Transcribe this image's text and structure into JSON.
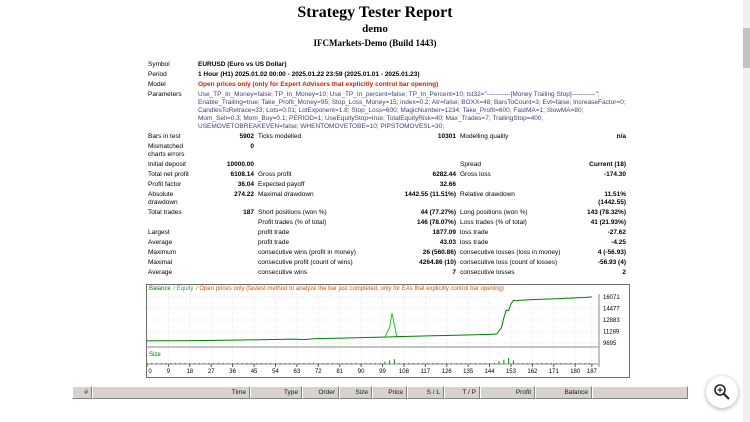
{
  "page": {
    "title": "Strategy Tester Report",
    "subtitle": "demo",
    "server": "IFCMarkets-Demo (Build 1443)"
  },
  "report": {
    "rows": [
      [
        {
          "t": "Symbol",
          "c": "l"
        },
        {
          "t": "EURUSD (Euro vs US Dollar)",
          "c": "vl",
          "span": 5
        }
      ],
      [
        {
          "t": "Period",
          "c": "l"
        },
        {
          "t": "1 Hour (H1) 2025.01.02 00:00 - 2025.01.22 23:59 (2025.01.01 - 2025.01.23)",
          "c": "vl",
          "span": 5
        }
      ],
      [
        {
          "t": "Model",
          "c": "l"
        },
        {
          "t": "Open prices only (only for Expert Advisors that explicitly control bar opening)",
          "c": "m",
          "span": 5
        }
      ],
      [
        {
          "t": "Parameters",
          "c": "l"
        },
        {
          "t": "Use_TP_In_Money=false; TP_In_Money=10; Use_TP_In_percent=false; TP_In_Percent=10; tst32=\"-----------[Money Trailing Stop]-----------\"; Enable_Trailing=true; Take_Profit_Money=95; Stop_Loss_Money=15; index=0.2; Atr=false; BOXX=48; BarsToCount=3; Evt=false; IncreaseFactor=0; CandlesToRetrace=33; Lots=0.01; LotExponent=1.8; Stop_Loss=600; MagicNumber=1234; Take_Profit=600; FastMA=1; SlowMA=80; Mom_Sell=0.3; Mom_Buy=0.1; PERIOD=1; UseEquityStop=true; TotalEquityRisk=40; Max_Trades=7; TrailingStop=400; USEMOVETOBREAKEVEN=false; WHENTOMOVETOBE=10; PIPSTOMOVESL=30;",
          "c": "p",
          "span": 5
        }
      ],
      [
        {
          "t": "Bars in test",
          "c": "l"
        },
        {
          "t": "5902",
          "c": "v"
        },
        {
          "t": "Ticks modelled",
          "c": "l"
        },
        {
          "t": "10301",
          "c": "v"
        },
        {
          "t": "Modelling quality",
          "c": "l"
        },
        {
          "t": "n/a",
          "c": "v"
        }
      ],
      [
        {
          "t": "Mismatched charts errors",
          "c": "l"
        },
        {
          "t": "0",
          "c": "v"
        },
        {
          "t": "",
          "c": "l",
          "span": 4
        }
      ],
      [
        {
          "t": "Initial deposit",
          "c": "l"
        },
        {
          "t": "10000.00",
          "c": "v"
        },
        {
          "t": "",
          "c": "l",
          "span": 2
        },
        {
          "t": "Spread",
          "c": "l"
        },
        {
          "t": "Current (18)",
          "c": "v"
        }
      ],
      [
        {
          "t": "Total net profit",
          "c": "l"
        },
        {
          "t": "6108.14",
          "c": "v"
        },
        {
          "t": "Gross profit",
          "c": "l"
        },
        {
          "t": "6282.44",
          "c": "v"
        },
        {
          "t": "Gross loss",
          "c": "l"
        },
        {
          "t": "-174.30",
          "c": "v"
        }
      ],
      [
        {
          "t": "Profit factor",
          "c": "l"
        },
        {
          "t": "36.04",
          "c": "v"
        },
        {
          "t": "Expected payoff",
          "c": "l"
        },
        {
          "t": "32.66",
          "c": "v"
        },
        {
          "t": "",
          "c": "l",
          "span": 2
        }
      ],
      [
        {
          "t": "Absolute drawdown",
          "c": "l"
        },
        {
          "t": "274.22",
          "c": "v"
        },
        {
          "t": "Maximal drawdown",
          "c": "l"
        },
        {
          "t": "1442.55 (11.51%)",
          "c": "v"
        },
        {
          "t": "Relative drawdown",
          "c": "l"
        },
        {
          "t": "11.51% (1442.55)",
          "c": "v"
        }
      ],
      [
        {
          "t": "Total trades",
          "c": "l"
        },
        {
          "t": "187",
          "c": "v"
        },
        {
          "t": "Short positions (won %)",
          "c": "l"
        },
        {
          "t": "44 (77.27%)",
          "c": "v"
        },
        {
          "t": "Long positions (won %)",
          "c": "l"
        },
        {
          "t": "143 (78.32%)",
          "c": "v"
        }
      ],
      [
        {
          "t": "",
          "c": "l",
          "span": 2
        },
        {
          "t": "Profit trades (% of total)",
          "c": "l"
        },
        {
          "t": "146 (78.07%)",
          "c": "v"
        },
        {
          "t": "Loss trades (% of total)",
          "c": "l"
        },
        {
          "t": "41 (21.93%)",
          "c": "v"
        }
      ],
      [
        {
          "t": "Largest",
          "c": "l"
        },
        {
          "t": "",
          "c": "l"
        },
        {
          "t": "profit trade",
          "c": "l"
        },
        {
          "t": "1877.09",
          "c": "v"
        },
        {
          "t": "loss trade",
          "c": "l"
        },
        {
          "t": "-27.62",
          "c": "v"
        }
      ],
      [
        {
          "t": "Average",
          "c": "l"
        },
        {
          "t": "",
          "c": "l"
        },
        {
          "t": "profit trade",
          "c": "l"
        },
        {
          "t": "43.03",
          "c": "v"
        },
        {
          "t": "loss trade",
          "c": "l"
        },
        {
          "t": "-4.25",
          "c": "v"
        }
      ],
      [
        {
          "t": "Maximum",
          "c": "l"
        },
        {
          "t": "",
          "c": "l"
        },
        {
          "t": "consecutive wins (profit in money)",
          "c": "l"
        },
        {
          "t": "26 (560.86)",
          "c": "v"
        },
        {
          "t": "consecutive losses (loss in money)",
          "c": "l"
        },
        {
          "t": "4 (-56.93)",
          "c": "v"
        }
      ],
      [
        {
          "t": "Maximal",
          "c": "l"
        },
        {
          "t": "",
          "c": "l"
        },
        {
          "t": "consecutive profit (count of wins)",
          "c": "l"
        },
        {
          "t": "4264.86 (10)",
          "c": "v"
        },
        {
          "t": "consecutive loss (count of losses)",
          "c": "l"
        },
        {
          "t": "-56.93 (4)",
          "c": "v"
        }
      ],
      [
        {
          "t": "Average",
          "c": "l"
        },
        {
          "t": "",
          "c": "l"
        },
        {
          "t": "consecutive wins",
          "c": "l"
        },
        {
          "t": "7",
          "c": "v"
        },
        {
          "t": "consecutive losses",
          "c": "l"
        },
        {
          "t": "2",
          "c": "v"
        }
      ]
    ]
  },
  "chart_data": {
    "type": "line",
    "title": "Balance / Equity",
    "legend": [
      {
        "text": "Balance ",
        "color": "#007a00"
      },
      {
        "text": "/ Equity ",
        "color": "#2fae2f"
      },
      {
        "text": "/ Open prices only (fastest method to analyze the bar just completed, only for EAs that explicitly control bar opening)",
        "color": "#cc5500"
      }
    ],
    "ylabels": [
      16071,
      14477,
      12883,
      11289,
      9695
    ],
    "ylim": [
      9298,
      16470
    ],
    "xlim": [
      0,
      190
    ],
    "xticks": [
      0,
      9,
      18,
      27,
      36,
      45,
      54,
      63,
      72,
      81,
      90,
      99,
      108,
      117,
      126,
      135,
      144,
      153,
      162,
      171,
      180,
      187
    ],
    "series": [
      {
        "name": "Equity",
        "color": "#27c127",
        "points": [
          [
            100,
            10525
          ],
          [
            102,
            11900
          ],
          [
            103,
            13850
          ],
          [
            104,
            12200
          ],
          [
            105,
            10580
          ],
          [
            107,
            10600
          ]
        ]
      },
      {
        "name": "Balance",
        "color": "#008000",
        "points": [
          [
            0,
            10000
          ],
          [
            8,
            10015
          ],
          [
            16,
            10035
          ],
          [
            24,
            10060
          ],
          [
            32,
            10090
          ],
          [
            40,
            10125
          ],
          [
            48,
            10165
          ],
          [
            56,
            10210
          ],
          [
            62,
            10255
          ],
          [
            66,
            10180
          ],
          [
            70,
            10300
          ],
          [
            76,
            10345
          ],
          [
            82,
            10390
          ],
          [
            88,
            10435
          ],
          [
            94,
            10480
          ],
          [
            100,
            10525
          ],
          [
            104,
            10570
          ],
          [
            108,
            10615
          ],
          [
            114,
            10660
          ],
          [
            120,
            10705
          ],
          [
            126,
            10750
          ],
          [
            132,
            10800
          ],
          [
            138,
            10850
          ],
          [
            144,
            10900
          ],
          [
            147,
            10950
          ],
          [
            149,
            11850
          ],
          [
            150,
            13150
          ],
          [
            151,
            14250
          ],
          [
            152,
            14180
          ],
          [
            153,
            15120
          ],
          [
            154,
            15600
          ],
          [
            155,
            15540
          ],
          [
            157,
            15610
          ],
          [
            160,
            15660
          ],
          [
            163,
            15705
          ],
          [
            166,
            15745
          ],
          [
            169,
            15785
          ],
          [
            172,
            15825
          ],
          [
            175,
            15865
          ],
          [
            178,
            15905
          ],
          [
            181,
            15945
          ],
          [
            184,
            15990
          ],
          [
            187,
            16071
          ]
        ]
      }
    ],
    "size_label": "Size",
    "size_bars": {
      "base_lots": 0.01,
      "overrides": {
        "100": 0.04,
        "102": 0.06,
        "104": 0.08,
        "148": 0.05,
        "150": 0.07,
        "152": 0.1,
        "154": 0.06
      }
    }
  },
  "trades_table": {
    "columns": [
      "#",
      "Time",
      "Type",
      "Order",
      "Size",
      "Price",
      "S / L",
      "T / P",
      "Profit",
      "Balance"
    ]
  }
}
